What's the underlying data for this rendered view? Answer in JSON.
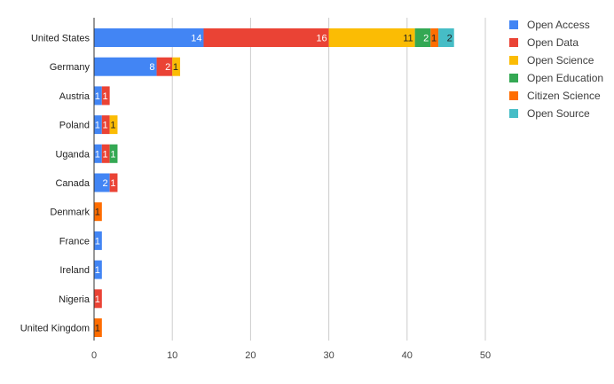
{
  "chart_data": {
    "type": "bar",
    "orientation": "horizontal",
    "stacked": true,
    "categories": [
      "United States",
      "Germany",
      "Austria",
      "Poland",
      "Uganda",
      "Canada",
      "Denmark",
      "France",
      "Ireland",
      "Nigeria",
      "United Kingdom"
    ],
    "series": [
      {
        "name": "Open Access",
        "color": "#4285f4",
        "values": [
          14,
          8,
          1,
          1,
          1,
          2,
          0,
          1,
          1,
          0,
          0
        ]
      },
      {
        "name": "Open Data",
        "color": "#ea4335",
        "values": [
          16,
          2,
          1,
          1,
          1,
          1,
          0,
          0,
          0,
          1,
          0
        ]
      },
      {
        "name": "Open Science",
        "color": "#fbbc04",
        "values": [
          11,
          1,
          0,
          1,
          0,
          0,
          0,
          0,
          0,
          0,
          0
        ]
      },
      {
        "name": "Open Education",
        "color": "#34a853",
        "values": [
          2,
          0,
          0,
          0,
          1,
          0,
          0,
          0,
          0,
          0,
          0
        ]
      },
      {
        "name": "Citizen Science",
        "color": "#ff6d01",
        "values": [
          1,
          0,
          0,
          0,
          0,
          0,
          1,
          0,
          0,
          0,
          1
        ]
      },
      {
        "name": "Open Source",
        "color": "#46bdc6",
        "values": [
          2,
          0,
          0,
          0,
          0,
          0,
          0,
          0,
          0,
          0,
          0
        ]
      }
    ],
    "xlim": [
      0,
      50
    ],
    "xticks": [
      0,
      10,
      20,
      30,
      40,
      50
    ],
    "grid": "vertical",
    "legend": "right",
    "title": "",
    "xlabel": "",
    "ylabel": ""
  }
}
